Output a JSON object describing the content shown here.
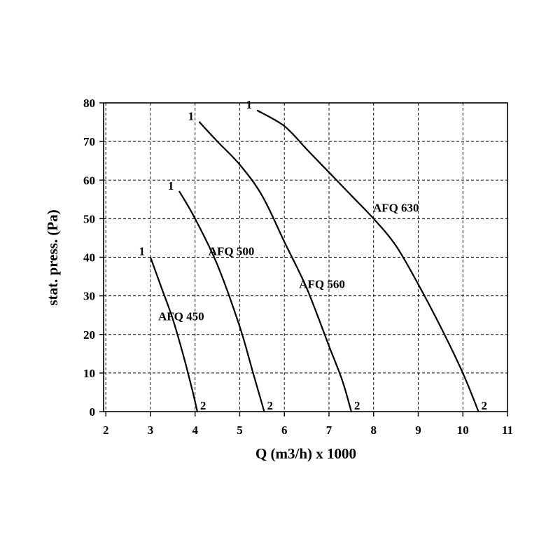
{
  "chart_data": {
    "type": "line",
    "title": "",
    "xlabel": "Q (m3/h) x 1000",
    "ylabel": "stat. press. (Pa)",
    "xlim": [
      1.95,
      11
    ],
    "ylim": [
      0,
      80
    ],
    "x_ticks": [
      "2",
      "3",
      "4",
      "5",
      "6",
      "7",
      "8",
      "9",
      "10",
      "11"
    ],
    "y_ticks": [
      "0",
      "10",
      "20",
      "30",
      "40",
      "50",
      "60",
      "70",
      "80"
    ],
    "grid": true,
    "legend": "none",
    "series": [
      {
        "name": "AFQ 450",
        "start_label": "1",
        "end_label": "2",
        "points": [
          [
            3.0,
            40
          ],
          [
            3.25,
            32
          ],
          [
            3.5,
            24
          ],
          [
            3.75,
            14
          ],
          [
            3.95,
            5
          ],
          [
            4.05,
            0
          ]
        ]
      },
      {
        "name": "AFQ 500",
        "start_label": "1",
        "end_label": "2",
        "points": [
          [
            3.65,
            57
          ],
          [
            4.0,
            50
          ],
          [
            4.5,
            38
          ],
          [
            5.0,
            22
          ],
          [
            5.3,
            10
          ],
          [
            5.55,
            0
          ]
        ]
      },
      {
        "name": "AFQ 560",
        "start_label": "1",
        "end_label": "2",
        "points": [
          [
            4.1,
            75
          ],
          [
            4.5,
            70
          ],
          [
            5.0,
            64
          ],
          [
            5.5,
            56
          ],
          [
            6.0,
            44
          ],
          [
            6.5,
            32
          ],
          [
            7.0,
            17
          ],
          [
            7.3,
            8
          ],
          [
            7.5,
            0
          ]
        ]
      },
      {
        "name": "AFQ 630",
        "start_label": "1",
        "end_label": "2",
        "points": [
          [
            5.4,
            78
          ],
          [
            6.0,
            74
          ],
          [
            6.5,
            68
          ],
          [
            7.0,
            62
          ],
          [
            7.5,
            56
          ],
          [
            8.0,
            50
          ],
          [
            8.5,
            43
          ],
          [
            9.0,
            33
          ],
          [
            9.5,
            22
          ],
          [
            10.0,
            10
          ],
          [
            10.35,
            0
          ]
        ]
      }
    ]
  }
}
